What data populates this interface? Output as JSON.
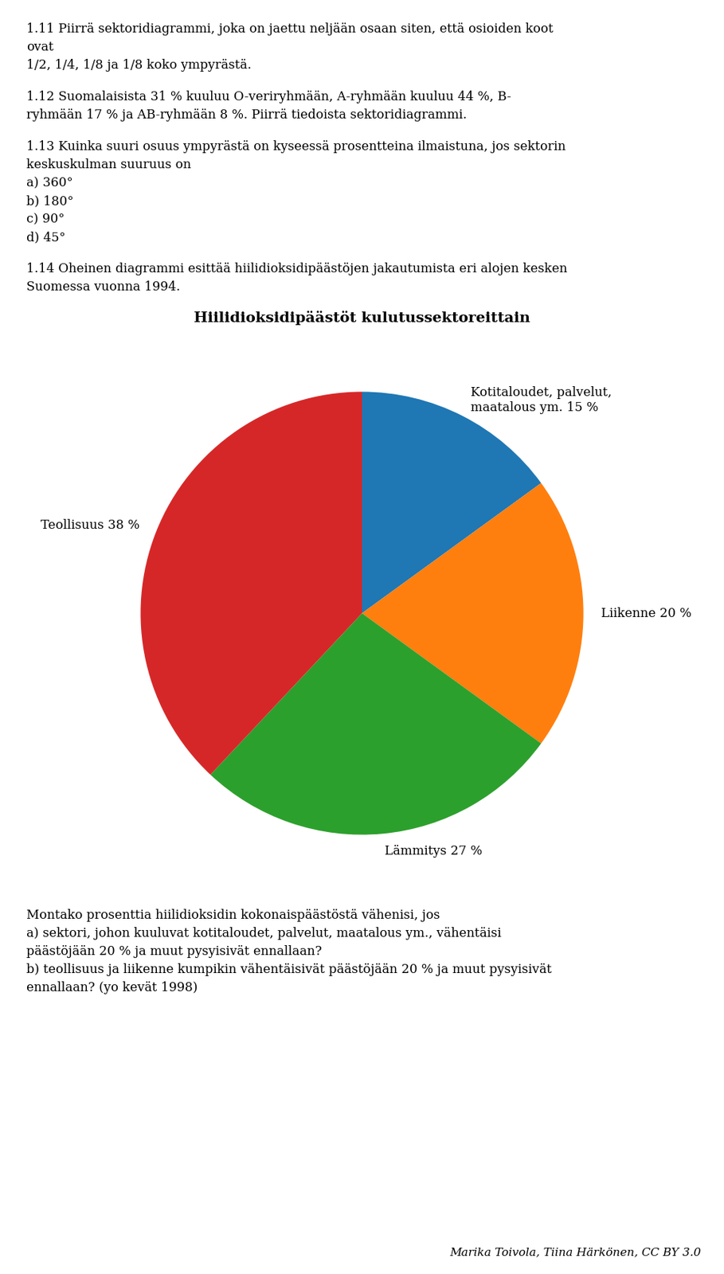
{
  "chart_data": {
    "type": "pie",
    "title": "Hiilidioksidipäästöt kulutussektoreittain",
    "categories": [
      "Kotitaloudet, palvelut,\nmaatalous ym. 15 %",
      "Liikenne 20 %",
      "Lämmitys 27 %",
      "Teollisuus 38 %"
    ],
    "values": [
      15,
      20,
      27,
      38
    ],
    "legend": false,
    "annotations": [
      [
        "1.11 Piirrä sektoridiagrammi, joka on jaettu neljään osaan siten, että osioiden koot",
        "ovat",
        "1/2, 1/4, 1/8 ja 1/8 koko ympyrästä."
      ],
      [
        "1.12 Suomalaisista 31 % kuuluu O-veriryhmään, A-ryhmään kuuluu 44 %, B-",
        "ryhmään 17 % ja AB-ryhmään 8 %. Piirrä tiedoista sektoridiagrammi."
      ],
      [
        "1.13 Kuinka suuri osuus ympyrästä on kyseessä prosentteina ilmaistuna, jos sektorin",
        "keskuskulman suuruus on",
        "a) 360°",
        "b) 180°",
        "c) 90°",
        "d) 45°"
      ],
      [
        "1.14 Oheinen diagrammi esittää hiilidioksidipäästöjen jakautumista eri alojen kesken",
        "Suomessa vuonna 1994."
      ],
      [
        "Montako prosenttia hiilidioksidin kokonaispäästöstä vähenisi, jos",
        "a) sektori, johon kuuluvat kotitaloudet, palvelut, maatalous ym., vähentäisi",
        "päästöjään 20 % ja muut pysyisivät ennallaan?",
        "b) teollisuus ja liikenne kumpikin vähentäisivät päästöjään 20 % ja muut pysyisivät",
        "ennallaan? (yo kevät 1998)"
      ],
      [
        "Marika Toivola, Tiina Härkönen, CC BY 3.0"
      ]
    ]
  }
}
